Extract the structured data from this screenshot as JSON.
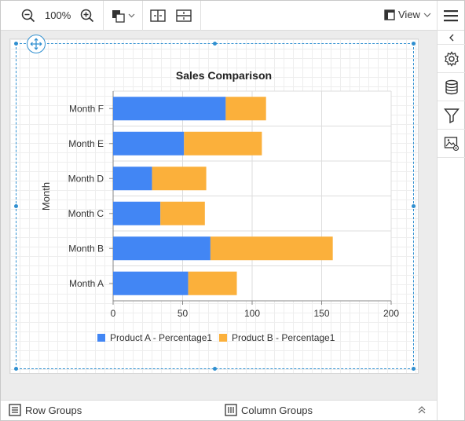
{
  "toolbar": {
    "zoom_level": "100%",
    "view_label": "View"
  },
  "chart_data": {
    "type": "bar",
    "orientation": "horizontal",
    "stacked": true,
    "title": "Sales Comparison",
    "ylabel": "Month",
    "xlabel": "",
    "categories": [
      "Month A",
      "Month B",
      "Month C",
      "Month D",
      "Month E",
      "Month F"
    ],
    "series": [
      {
        "name": "Product A - Percentage1",
        "color": "#4286f4",
        "values": [
          54,
          70,
          34,
          28,
          51,
          81
        ]
      },
      {
        "name": "Product B - Percentage1",
        "color": "#fbb03b",
        "values": [
          35,
          88,
          32,
          39,
          56,
          29
        ]
      }
    ],
    "xlim": [
      0,
      200
    ],
    "xticks": [
      "0",
      "50",
      "100",
      "150",
      "200"
    ],
    "grid": true,
    "legend": "bottom"
  },
  "bottom_bar": {
    "row_groups": "Row Groups",
    "column_groups": "Column Groups"
  }
}
